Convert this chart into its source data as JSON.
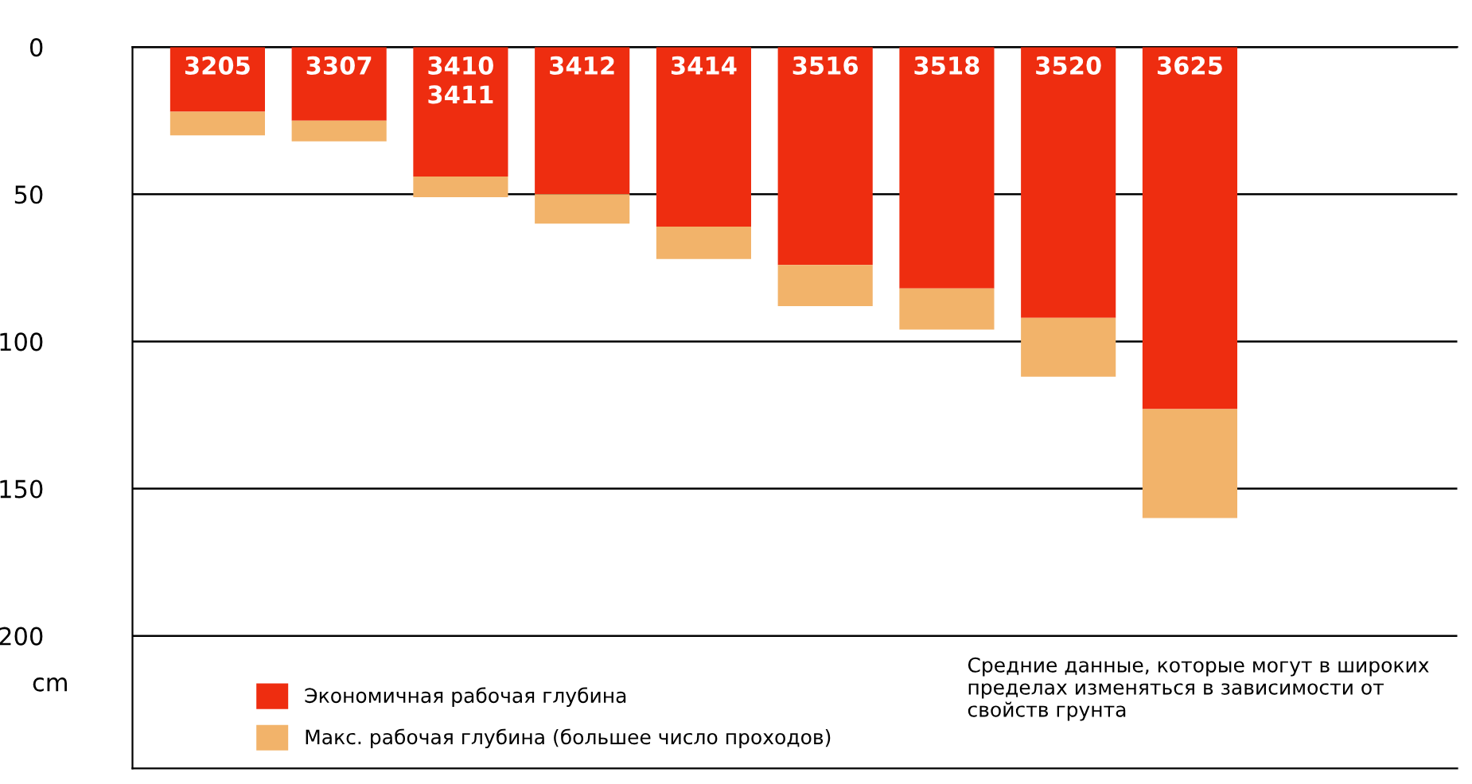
{
  "chart_data": {
    "type": "bar",
    "stacked": true,
    "ylabel": "cm",
    "categories": [
      "3205",
      "3307",
      "3410\n3411",
      "3412",
      "3414",
      "3516",
      "3518",
      "3520",
      "3625"
    ],
    "series": [
      {
        "name": "Экономичная рабочая глубина",
        "color": "#ee2d10",
        "values": [
          22,
          25,
          44,
          50,
          61,
          74,
          82,
          92,
          123
        ]
      },
      {
        "name": "Макс. рабочая глубина (большее число проходов)",
        "color": "#f2b36a",
        "values": [
          8,
          7,
          7,
          10,
          11,
          14,
          14,
          20,
          37
        ]
      }
    ],
    "ylim": [
      245,
      0
    ],
    "yticks": [
      0,
      50,
      100,
      150,
      200
    ],
    "grid": "y",
    "legend": "bottom left",
    "annotations": [
      "Средние данные, которые могут в широких пределах изменяться в зависимости от свойств грунта"
    ]
  }
}
